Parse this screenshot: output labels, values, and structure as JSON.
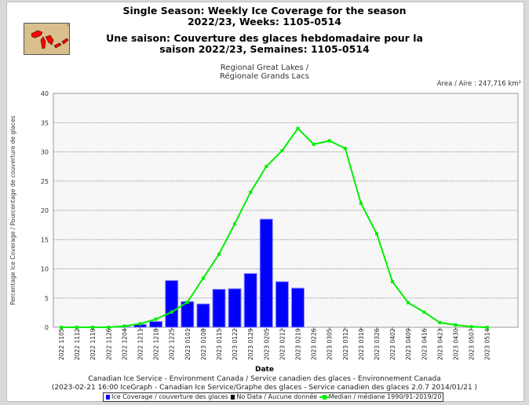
{
  "header": {
    "title_en_1": "Single Season: Weekly Ice Coverage for the season",
    "title_en_2": "2022/23, Weeks: 1105-0514",
    "title_fr_1": "Une saison: Couverture des glaces hebdomadaire pour la",
    "title_fr_2": "saison 2022/23, Semaines: 1105-0514",
    "region_1": "Regional Great Lakes /",
    "region_2": "Régionale Grands Lacs",
    "area": "Area / Aire : 247,716 km²"
  },
  "footer": {
    "line1": "Canadian Ice Service - Environment Canada / Service canadien des glaces - Environnement Canada",
    "line2": "(2023-02-21 16:00 IceGraph - Canadian Ice Service/Graphe des glaces - Service canadien des glaces 2.0.7 2014/01/21 )"
  },
  "legend": {
    "ice": "Ice Coverage / couverture des glaces",
    "nodata": "No Data / Aucune donnée",
    "median": "Median / médiane 1990/91-2019/20"
  },
  "colors": {
    "bar": "#0000ff",
    "bar_edge": "#8888ff",
    "median": "#00ee00",
    "nodata": "#000000",
    "logo_bg": "#d8bf8c",
    "logo_lakes": "#ff0000"
  },
  "chart_data": {
    "type": "bar",
    "xlabel": "Date",
    "ylabel": "Percentage Ice Coverage / Pourcentage de couverture de glaces",
    "ylim": [
      0,
      40
    ],
    "yticks": [
      0,
      5,
      10,
      15,
      20,
      25,
      30,
      35,
      40
    ],
    "grid": true,
    "legend_position": "bottom",
    "categories": [
      "2022 1105",
      "2022 1112",
      "2022 1119",
      "2022 1126",
      "2022 1204",
      "2022 1211",
      "2022 1218",
      "2022 1225",
      "2023 0101",
      "2023 0108",
      "2023 0115",
      "2023 0122",
      "2023 0129",
      "2023 0205",
      "2023 0212",
      "2023 0219",
      "2023 0226",
      "2023 0305",
      "2023 0312",
      "2023 0319",
      "2023 0326",
      "2023 0402",
      "2023 0409",
      "2023 0416",
      "2023 0423",
      "2023 0430",
      "2023 0507",
      "2023 0514"
    ],
    "series": [
      {
        "name": "Ice Coverage / couverture des glaces",
        "type": "bar",
        "values": [
          0,
          0,
          0,
          0,
          0.1,
          0.5,
          1.0,
          8.0,
          4.4,
          4.0,
          6.5,
          6.6,
          9.2,
          18.5,
          7.8,
          6.7,
          null,
          null,
          null,
          null,
          null,
          null,
          null,
          null,
          null,
          null,
          null,
          null
        ]
      },
      {
        "name": "Median / médiane 1990/91-2019/20",
        "type": "line",
        "values": [
          0,
          0,
          0,
          0,
          0.2,
          0.6,
          1.4,
          2.6,
          4.3,
          8.4,
          12.5,
          17.7,
          23.1,
          27.5,
          30.2,
          34.0,
          31.3,
          31.9,
          30.6,
          21.2,
          16.0,
          7.8,
          4.2,
          2.6,
          0.8,
          0.4,
          0.1,
          0.0
        ]
      }
    ]
  }
}
